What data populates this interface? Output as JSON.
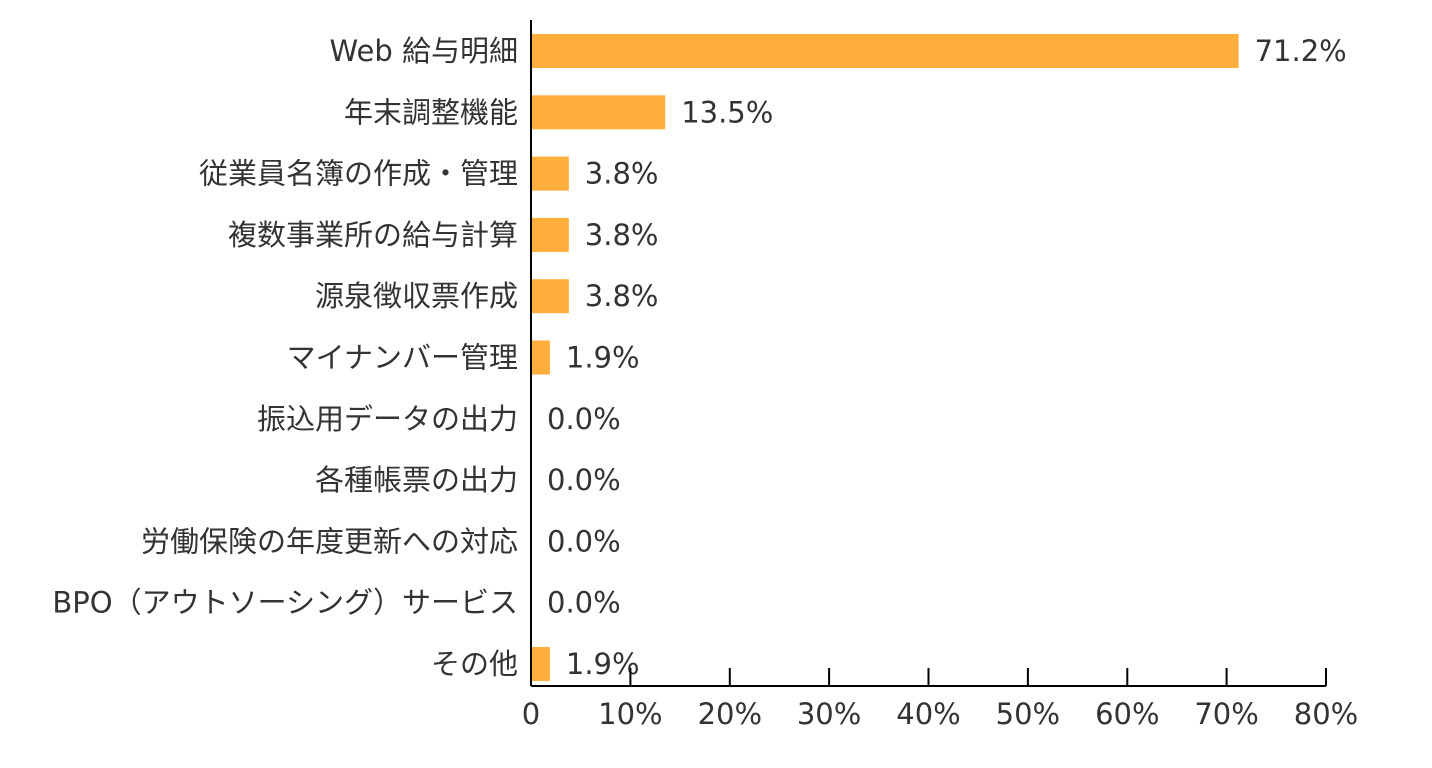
{
  "chart_data": {
    "type": "bar",
    "orientation": "horizontal",
    "categories": [
      "Web 給与明細",
      "年末調整機能",
      "従業員名簿の作成・管理",
      "複数事業所の給与計算",
      "源泉徴収票作成",
      "マイナンバー管理",
      "振込用データの出力",
      "各種帳票の出力",
      "労働保険の年度更新への対応",
      "BPO（アウトソーシング）サービス",
      "その他"
    ],
    "values": [
      71.2,
      13.5,
      3.8,
      3.8,
      3.8,
      1.9,
      0.0,
      0.0,
      0.0,
      0.0,
      1.9
    ],
    "value_labels": [
      "71.2%",
      "13.5%",
      "3.8%",
      "3.8%",
      "3.8%",
      "1.9%",
      "0.0%",
      "0.0%",
      "0.0%",
      "0.0%",
      "1.9%"
    ],
    "x_ticks": [
      0,
      10,
      20,
      30,
      40,
      50,
      60,
      70,
      80
    ],
    "x_tick_labels": [
      "0",
      "10%",
      "20%",
      "30%",
      "40%",
      "50%",
      "60%",
      "70%",
      "80%"
    ],
    "xlim": [
      0,
      80
    ],
    "grid": false,
    "legend": "none",
    "title": "",
    "xlabel": "",
    "ylabel": "",
    "bar_color": "#FFAE3B",
    "axis_color": "#000000"
  }
}
